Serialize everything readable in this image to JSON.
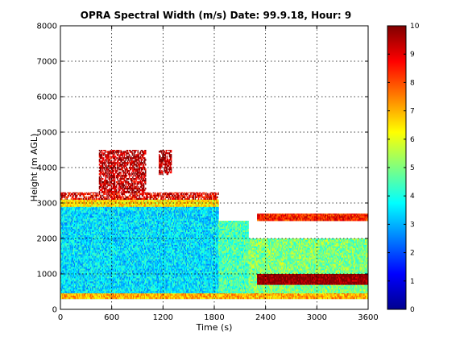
{
  "chart_data": {
    "type": "heatmap",
    "title": "OPRA Spectral Width (m/s)  Date: 99.9.18, Hour: 9",
    "xlabel": "Time (s)",
    "ylabel": "Height (m AGL)",
    "xlim": [
      0,
      3600
    ],
    "ylim": [
      0,
      8000
    ],
    "xticks": [
      "0",
      "600",
      "1200",
      "1800",
      "2400",
      "3000",
      "3600"
    ],
    "yticks": [
      "0",
      "1000",
      "2000",
      "3000",
      "4000",
      "5000",
      "6000",
      "7000",
      "8000"
    ],
    "grid": true,
    "colormap": "jet",
    "colorbar": {
      "range": [
        0,
        10
      ],
      "ticks": [
        "0",
        "1",
        "2",
        "3",
        "4",
        "5",
        "6",
        "7",
        "8",
        "9",
        "10"
      ]
    },
    "regions": [
      {
        "x": [
          0,
          1850
        ],
        "y": [
          300,
          2900
        ],
        "value": 3.5
      },
      {
        "x": [
          1850,
          2200
        ],
        "y": [
          300,
          2500
        ],
        "value": 4.5
      },
      {
        "x": [
          2200,
          3600
        ],
        "y": [
          300,
          2000
        ],
        "value": 5.0
      },
      {
        "x": [
          0,
          1850
        ],
        "y": [
          2900,
          3100
        ],
        "value": 6.5
      },
      {
        "x": [
          0,
          1850
        ],
        "y": [
          3100,
          3300
        ],
        "value": 9.0
      },
      {
        "x": [
          450,
          1000
        ],
        "y": [
          3300,
          4500
        ],
        "value": 9.5
      },
      {
        "x": [
          1150,
          1300
        ],
        "y": [
          3800,
          4500
        ],
        "value": 9.5
      },
      {
        "x": [
          2300,
          3600
        ],
        "y": [
          700,
          1000
        ],
        "value": 10.0
      },
      {
        "x": [
          2300,
          3600
        ],
        "y": [
          2500,
          2700
        ],
        "value": 8.5
      },
      {
        "x": [
          0,
          3600
        ],
        "y": [
          300,
          450
        ],
        "value": 7.0
      }
    ]
  }
}
